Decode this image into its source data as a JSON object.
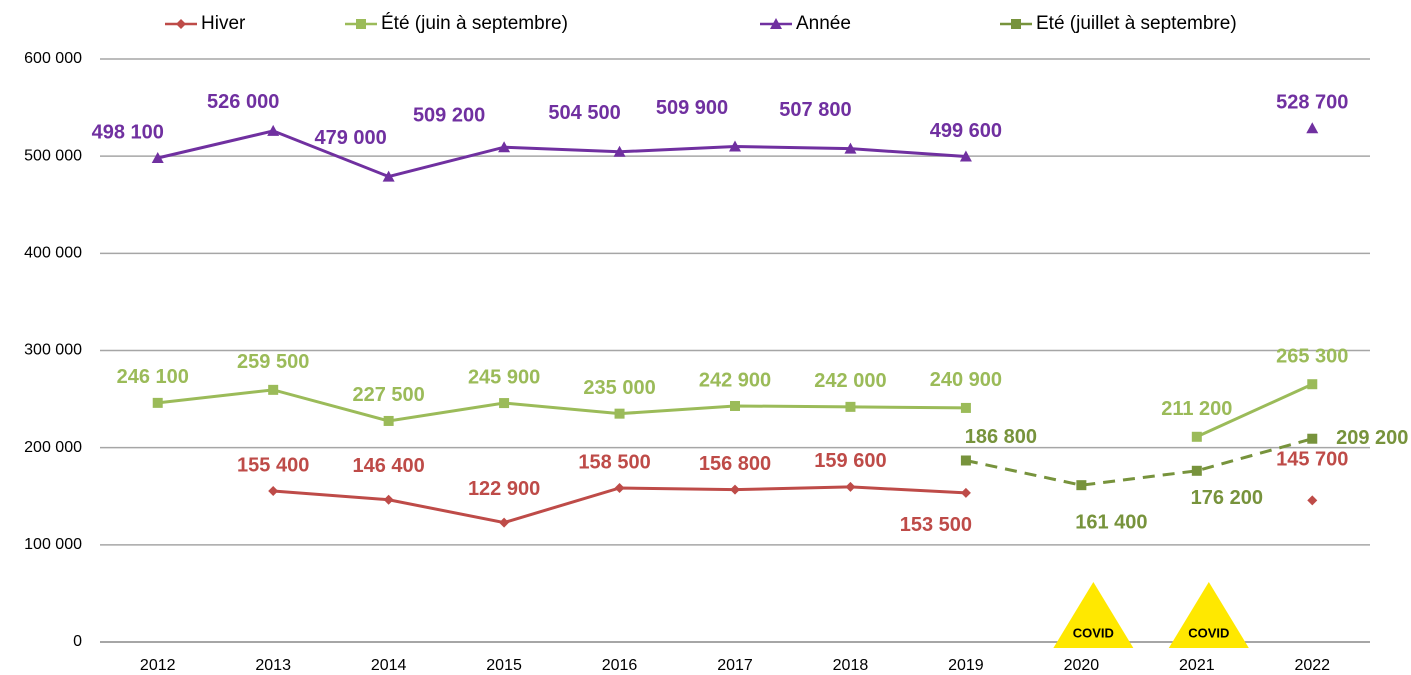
{
  "chart_data": {
    "type": "line",
    "categories": [
      "2012",
      "2013",
      "2014",
      "2015",
      "2016",
      "2017",
      "2018",
      "2019",
      "2020",
      "2021",
      "2022"
    ],
    "series": [
      {
        "name": "Hiver",
        "color": "#be4b48",
        "marker": "diamond",
        "dashed": false,
        "values": [
          null,
          155400,
          146400,
          122900,
          158500,
          156800,
          159600,
          153500,
          null,
          null,
          145700
        ],
        "value_labels": [
          null,
          "155 400",
          "146 400",
          "122 900",
          "158 500",
          "156 800",
          "159 600",
          "153 500",
          null,
          null,
          "145 700"
        ]
      },
      {
        "name": "Été (juin à septembre)",
        "color": "#9bbb59",
        "marker": "square",
        "dashed": false,
        "values": [
          246100,
          259500,
          227500,
          245900,
          235000,
          242900,
          242000,
          240900,
          null,
          211200,
          265300
        ],
        "value_labels": [
          "246 100",
          "259 500",
          "227 500",
          "245 900",
          "235 000",
          "242 900",
          "242 000",
          "240 900",
          null,
          "211 200",
          "265 300"
        ]
      },
      {
        "name": "Année",
        "color": "#7030a0",
        "marker": "triangle",
        "dashed": false,
        "values": [
          498100,
          526000,
          479000,
          509200,
          504500,
          509900,
          507800,
          499600,
          null,
          null,
          528700
        ],
        "value_labels": [
          "498 100",
          "526 000",
          "479 000",
          "509 200",
          "504 500",
          "509 900",
          "507 800",
          "499 600",
          null,
          null,
          "528 700"
        ]
      },
      {
        "name": "Eté (juillet à septembre)",
        "color": "#77933c",
        "marker": "square",
        "dashed": true,
        "values": [
          null,
          null,
          null,
          null,
          null,
          null,
          null,
          186800,
          161400,
          176200,
          209200
        ],
        "value_labels": [
          null,
          null,
          null,
          null,
          null,
          null,
          null,
          "186 800",
          "161 400",
          "176 200",
          "209 200"
        ]
      }
    ],
    "ylim": [
      0,
      600000
    ],
    "yticks": [
      0,
      {
        "value": 100000,
        "label": "100 000"
      },
      {
        "value": 200000,
        "label": "200 000"
      },
      {
        "value": 300000,
        "label": "300 000"
      },
      {
        "value": 400000,
        "label": "400 000"
      },
      {
        "value": 500000,
        "label": "500 000"
      },
      {
        "value": 600000,
        "label": "600 000"
      }
    ],
    "grid": true,
    "legend": "top",
    "annotations": [
      {
        "text": "COVID",
        "x": "2020"
      },
      {
        "text": "COVID",
        "x": "2021"
      }
    ]
  }
}
